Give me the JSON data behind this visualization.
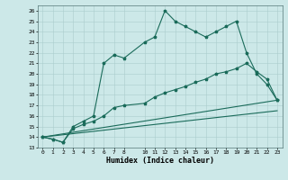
{
  "title": "",
  "xlabel": "Humidex (Indice chaleur)",
  "xlim": [
    -0.5,
    23.5
  ],
  "ylim": [
    13,
    26.5
  ],
  "yticks": [
    13,
    14,
    15,
    16,
    17,
    18,
    19,
    20,
    21,
    22,
    23,
    24,
    25,
    26
  ],
  "xticks": [
    0,
    1,
    2,
    3,
    4,
    5,
    6,
    7,
    8,
    10,
    11,
    12,
    13,
    14,
    15,
    16,
    17,
    18,
    19,
    20,
    21,
    22,
    23
  ],
  "background_color": "#cce8e8",
  "grid_color": "#aacccc",
  "line_color": "#1a6b5a",
  "line1_x": [
    0,
    1,
    2,
    3,
    4,
    5,
    6,
    7,
    8,
    10,
    11,
    12,
    13,
    14,
    15,
    16,
    17,
    18,
    19,
    20,
    21,
    22,
    23
  ],
  "line1_y": [
    14.0,
    13.8,
    13.5,
    15.0,
    15.5,
    16.0,
    21.0,
    21.8,
    21.5,
    23.0,
    23.5,
    26.0,
    25.0,
    24.5,
    24.0,
    23.5,
    24.0,
    24.5,
    25.0,
    22.0,
    20.0,
    19.0,
    17.5
  ],
  "line2_x": [
    0,
    1,
    2,
    3,
    4,
    5,
    6,
    7,
    8,
    10,
    11,
    12,
    13,
    14,
    15,
    16,
    17,
    18,
    19,
    20,
    21,
    22,
    23
  ],
  "line2_y": [
    14.0,
    13.8,
    13.5,
    14.8,
    15.2,
    15.5,
    16.0,
    16.8,
    17.0,
    17.2,
    17.8,
    18.2,
    18.5,
    18.8,
    19.2,
    19.5,
    20.0,
    20.2,
    20.5,
    21.0,
    20.2,
    19.5,
    17.5
  ],
  "line3_x": [
    0,
    23
  ],
  "line3_y": [
    14,
    17.5
  ],
  "line4_x": [
    0,
    23
  ],
  "line4_y": [
    14,
    16.5
  ]
}
